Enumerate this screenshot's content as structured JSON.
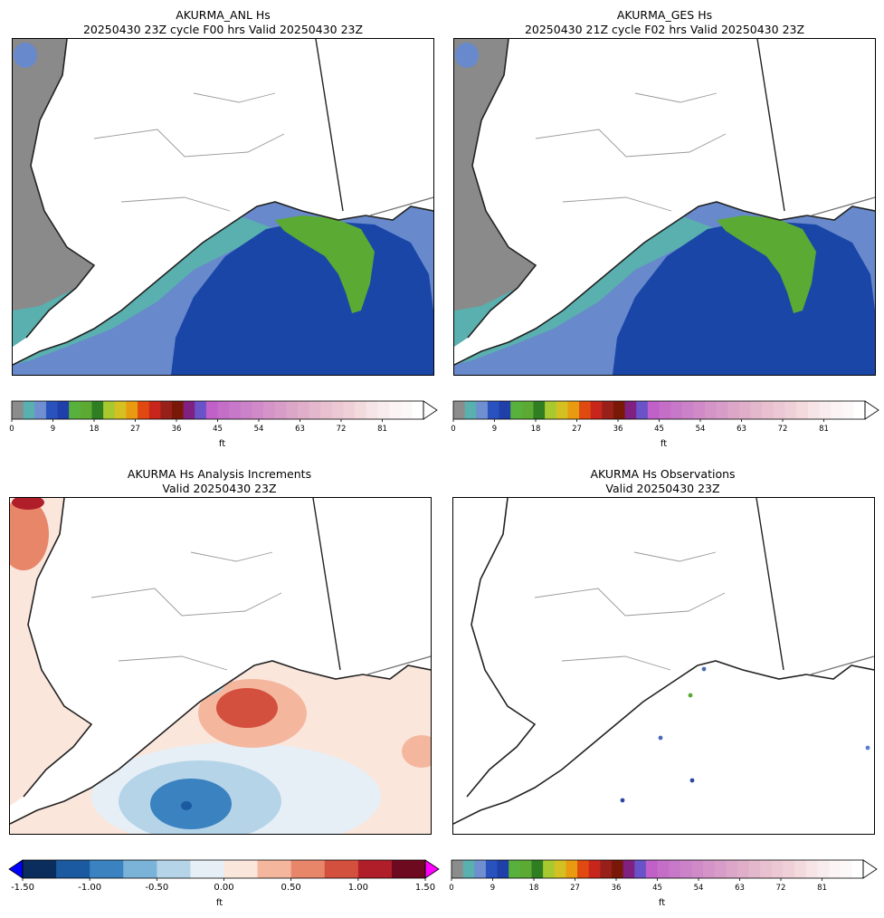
{
  "panels": [
    {
      "title_line1": "AKURMA_ANL Hs",
      "title_line2": "20250430 23Z cycle F00 hrs Valid 20250430 23Z",
      "colorbar": "hs"
    },
    {
      "title_line1": "AKURMA_GES Hs",
      "title_line2": "20250430 21Z cycle F02 hrs Valid 20250430 23Z",
      "colorbar": "hs"
    },
    {
      "title_line1": "AKURMA Hs Analysis Increments",
      "title_line2": "Valid 20250430 23Z",
      "colorbar": "increment"
    },
    {
      "title_line1": "AKURMA Hs Observations",
      "title_line2": "Valid 20250430 23Z",
      "colorbar": "hs"
    }
  ],
  "colorbars": {
    "hs": {
      "unit": "ft",
      "ticks": [
        "0",
        "9",
        "18",
        "27",
        "36",
        "45",
        "54",
        "63",
        "72",
        "81"
      ],
      "tick_values": [
        0,
        9,
        18,
        27,
        36,
        45,
        54,
        63,
        72,
        81
      ],
      "vmin": 0,
      "vmax": 90,
      "extend": "max",
      "colors": [
        "#8c8c8c",
        "#5aafaf",
        "#6f8fd0",
        "#2a52be",
        "#1e40a8",
        "#58b13c",
        "#5caa34",
        "#2f7f22",
        "#a8c830",
        "#d4c020",
        "#e89b10",
        "#e04a10",
        "#c8261c",
        "#98201a",
        "#7a1808",
        "#802080",
        "#6a52c8",
        "#c060c8",
        "#c46ec8",
        "#c878c8",
        "#cc82c8",
        "#d08ac8",
        "#d494c8",
        "#d89cc8",
        "#dca6c8",
        "#e0aec8",
        "#e4b8cc",
        "#e8c0d0",
        "#ecc8d4",
        "#f0d0d8",
        "#f2dadd",
        "#f6e4e6",
        "#f8ecee",
        "#fbf3f4",
        "#fdf8f8",
        "#ffffff"
      ]
    },
    "increment": {
      "unit": "ft",
      "ticks": [
        "-1.50",
        "-1.00",
        "-0.50",
        "0.00",
        "0.50",
        "1.00",
        "1.50"
      ],
      "tick_values": [
        -1.5,
        -1.0,
        -0.5,
        0.0,
        0.5,
        1.0,
        1.5
      ],
      "vmin": -1.5,
      "vmax": 1.5,
      "extend": "both",
      "under_color": "#0000ff",
      "over_color": "#ff00ff",
      "colors": [
        "#0b2d5e",
        "#1b5aa0",
        "#3a82c0",
        "#7ab2d8",
        "#b5d4e8",
        "#e6eff6",
        "#fbe6dc",
        "#f4b79e",
        "#e8866a",
        "#d4503e",
        "#b01e2a",
        "#6e0a20"
      ]
    }
  },
  "map_colors": {
    "land": "#ffffff",
    "gray_ocean": "#8a8a8a",
    "teal": "#5aafaf",
    "light_blue": "#6889cc",
    "dark_blue": "#1a46a8",
    "green": "#5aaa34",
    "coast": "#222222",
    "borders": "#888888"
  },
  "observations": [
    {
      "value_ft": 6.5,
      "color": "#4a6ab8"
    },
    {
      "value_ft": 6.5,
      "color": "#4a6ab8"
    },
    {
      "value_ft": 9.5,
      "color": "#2a48a0"
    },
    {
      "value_ft": 5.0,
      "color": "#5a80c8"
    },
    {
      "value_ft": 18.0,
      "color": "#58a838"
    },
    {
      "value_ft": 6.5,
      "color": "#4a6ab8"
    }
  ]
}
